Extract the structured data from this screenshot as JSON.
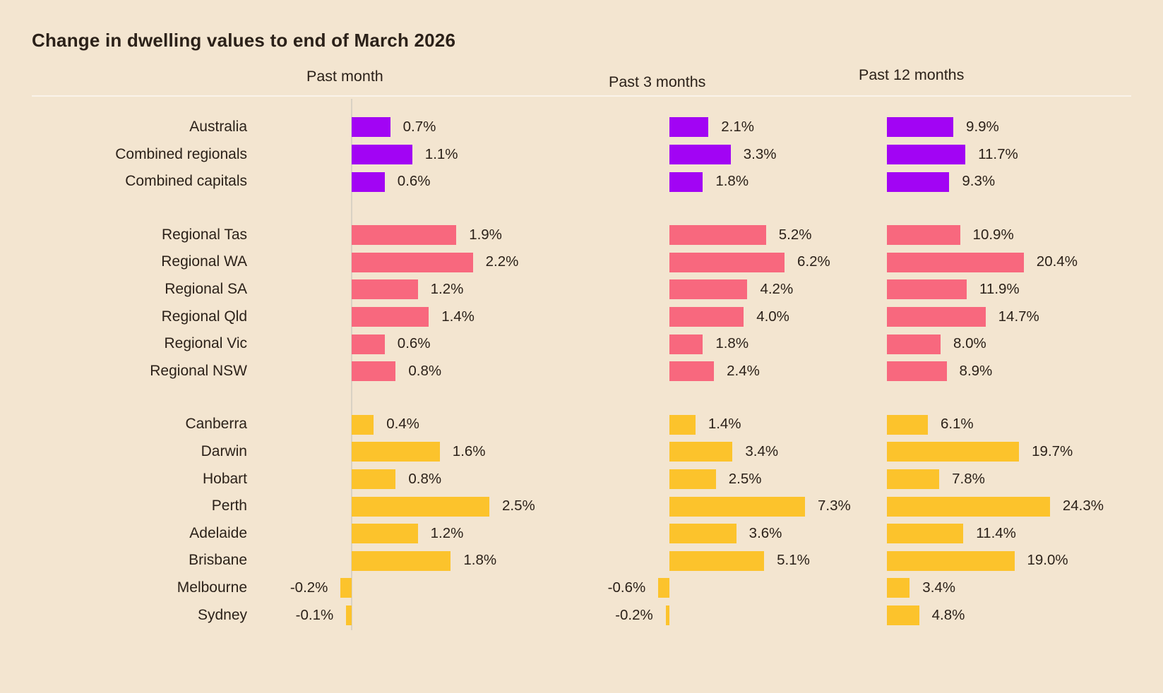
{
  "title": "Change in dwelling values to end of March 2026",
  "colors": {
    "background": "#F3E5D0",
    "text": "#2B2119",
    "axis_line": "#D9D2C4",
    "header_divider": "rgba(255,255,255,0.55)",
    "national": "#A204F4",
    "regional": "#F8687E",
    "capitals": "#FCC32C"
  },
  "chart_data": {
    "type": "bar",
    "orientation": "horizontal",
    "title": "Change in dwelling values to end of March 2026",
    "value_suffix": "%",
    "legend": "none",
    "grid": "off",
    "panels": [
      {
        "label": "Past month",
        "xlim": [
          -0.3,
          2.8
        ]
      },
      {
        "label": "Past 3 months",
        "xlim": [
          -0.8,
          8.0
        ]
      },
      {
        "label": "Past 12 months",
        "xlim": [
          0.0,
          26.0
        ]
      }
    ],
    "groups": [
      {
        "name": "national-aggregates",
        "color": "#A204F4",
        "rows": [
          {
            "label": "Australia",
            "values": [
              0.7,
              2.1,
              9.9
            ]
          },
          {
            "label": "Combined regionals",
            "values": [
              1.1,
              3.3,
              11.7
            ]
          },
          {
            "label": "Combined capitals",
            "values": [
              0.6,
              1.8,
              9.3
            ]
          }
        ]
      },
      {
        "name": "regional-markets",
        "color": "#F8687E",
        "rows": [
          {
            "label": "Regional Tas",
            "values": [
              1.9,
              5.2,
              10.9
            ]
          },
          {
            "label": "Regional WA",
            "values": [
              2.2,
              6.2,
              20.4
            ]
          },
          {
            "label": "Regional SA",
            "values": [
              1.2,
              4.2,
              11.9
            ]
          },
          {
            "label": "Regional Qld",
            "values": [
              1.4,
              4.0,
              14.7
            ]
          },
          {
            "label": "Regional Vic",
            "values": [
              0.6,
              1.8,
              8.0
            ]
          },
          {
            "label": "Regional NSW",
            "values": [
              0.8,
              2.4,
              8.9
            ]
          }
        ]
      },
      {
        "name": "capital-cities",
        "color": "#FCC32C",
        "rows": [
          {
            "label": "Canberra",
            "values": [
              0.4,
              1.4,
              6.1
            ]
          },
          {
            "label": "Darwin",
            "values": [
              1.6,
              3.4,
              19.7
            ]
          },
          {
            "label": "Hobart",
            "values": [
              0.8,
              2.5,
              7.8
            ]
          },
          {
            "label": "Perth",
            "values": [
              2.5,
              7.3,
              24.3
            ]
          },
          {
            "label": "Adelaide",
            "values": [
              1.2,
              3.6,
              11.4
            ]
          },
          {
            "label": "Brisbane",
            "values": [
              1.8,
              5.1,
              19.0
            ]
          },
          {
            "label": "Melbourne",
            "values": [
              -0.2,
              -0.6,
              3.4
            ]
          },
          {
            "label": "Sydney",
            "values": [
              -0.1,
              -0.2,
              4.8
            ]
          }
        ]
      }
    ]
  }
}
